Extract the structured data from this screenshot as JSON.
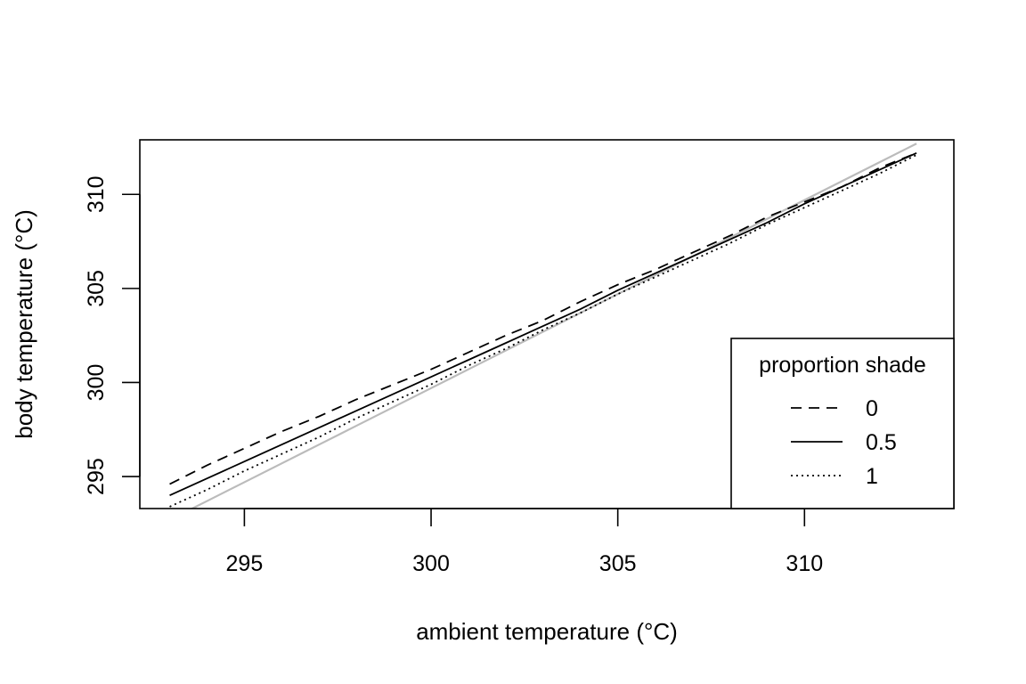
{
  "chart_data": {
    "type": "line",
    "title": "",
    "xlabel": "ambient temperature (°C)",
    "ylabel": "body temperature (°C)",
    "xlim": [
      292.2,
      314.0
    ],
    "ylim": [
      293.3,
      312.9
    ],
    "xticks": [
      295,
      300,
      305,
      310
    ],
    "yticks": [
      295,
      300,
      305,
      310
    ],
    "x": [
      293,
      294,
      295,
      296,
      297,
      298,
      299,
      300,
      301,
      302,
      303,
      304,
      305,
      306,
      307,
      308,
      309,
      310,
      311,
      312,
      313
    ],
    "series": [
      {
        "name": "0",
        "line_style": "dashed",
        "color": "#000000",
        "values": [
          294.6,
          295.6,
          296.5,
          297.4,
          298.2,
          299.1,
          299.9,
          300.7,
          301.6,
          302.5,
          303.3,
          304.3,
          305.2,
          306.0,
          306.9,
          307.8,
          308.8,
          309.6,
          310.4,
          311.4,
          312.2
        ]
      },
      {
        "name": "0.5",
        "line_style": "solid",
        "color": "#000000",
        "values": [
          294.0,
          294.9,
          295.8,
          296.7,
          297.6,
          298.5,
          299.4,
          300.3,
          301.2,
          302.1,
          303.0,
          303.9,
          304.9,
          305.8,
          306.7,
          307.6,
          308.5,
          309.5,
          310.4,
          311.3,
          312.2
        ]
      },
      {
        "name": "1",
        "line_style": "dotted",
        "color": "#000000",
        "values": [
          293.4,
          294.3,
          295.3,
          296.2,
          297.1,
          298.1,
          299.0,
          299.9,
          300.9,
          301.8,
          302.8,
          303.7,
          304.7,
          305.6,
          306.5,
          307.4,
          308.4,
          309.3,
          310.2,
          311.1,
          312.1
        ]
      },
      {
        "line_style": "solid",
        "color": "#bbbbbb",
        "values": [
          292.7,
          293.7,
          294.7,
          295.7,
          296.7,
          297.7,
          298.7,
          299.7,
          300.7,
          301.7,
          302.7,
          303.7,
          304.7,
          305.7,
          306.7,
          307.7,
          308.7,
          309.7,
          310.7,
          311.7,
          312.7
        ]
      }
    ],
    "legend": {
      "title": "proportion shade",
      "position": "bottom-right",
      "entries": [
        "0",
        "0.5",
        "1"
      ]
    },
    "grid": false
  }
}
